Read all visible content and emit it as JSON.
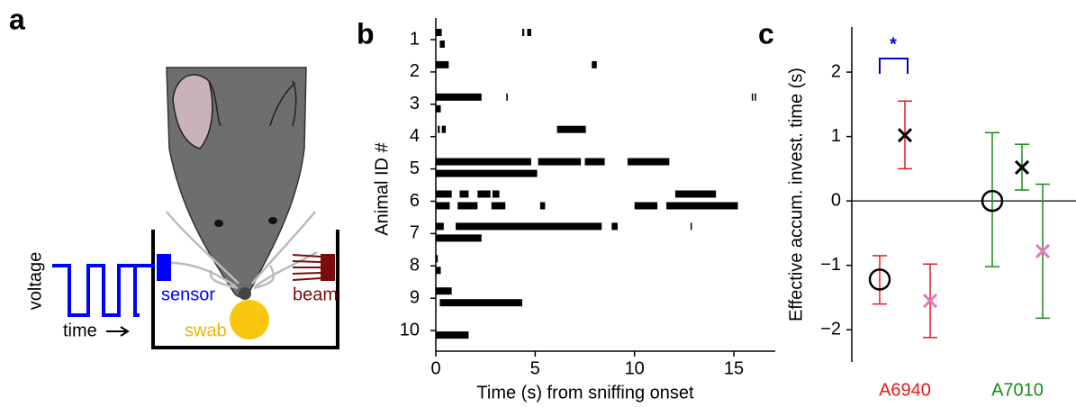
{
  "diagram": {
    "letter": "a",
    "voltage": "voltage",
    "time": "time",
    "sensor": "sensor",
    "beam": "beam",
    "swab": "swab"
  },
  "chart_data": [
    {
      "type": "raster",
      "letter": "b",
      "xlabel": "Time (s) from sniffing onset",
      "ylabel": "Animal ID #",
      "xlim": [
        0,
        17
      ],
      "xticks": [
        0,
        5,
        10,
        15
      ],
      "categories": [
        "1",
        "2",
        "3",
        "4",
        "5",
        "6",
        "7",
        "8",
        "9",
        "10"
      ],
      "color": "#000000",
      "animals": [
        {
          "trials": [
            [
              [
                0,
                0.3
              ],
              [
                4.35,
                4.45
              ],
              [
                4.6,
                4.8
              ]
            ],
            [
              [
                0.2,
                0.45
              ]
            ]
          ]
        },
        {
          "trials": [
            [
              [
                0,
                0.65
              ],
              [
                7.85,
                8.1
              ]
            ],
            []
          ]
        },
        {
          "trials": [
            [
              [
                0,
                2.3
              ],
              [
                3.55,
                3.62
              ],
              [
                15.9,
                15.95
              ],
              [
                16.05,
                16.1
              ]
            ],
            [
              [
                0,
                0.25
              ]
            ]
          ]
        },
        {
          "trials": [
            [
              [
                0.1,
                0.2
              ],
              [
                0.3,
                0.5
              ],
              [
                6.1,
                7.55
              ]
            ],
            []
          ]
        },
        {
          "trials": [
            [
              [
                0,
                4.8
              ],
              [
                5.15,
                7.3
              ],
              [
                7.5,
                8.5
              ],
              [
                9.65,
                11.75
              ]
            ],
            [
              [
                0,
                5.1
              ]
            ]
          ]
        },
        {
          "trials": [
            [
              [
                0,
                0.8
              ],
              [
                1.2,
                1.65
              ],
              [
                2.1,
                2.75
              ],
              [
                2.85,
                3.2
              ],
              [
                12.05,
                14.1
              ]
            ],
            [
              [
                0,
                0.7
              ],
              [
                1.1,
                2.1
              ],
              [
                2.8,
                3.5
              ],
              [
                5.25,
                5.5
              ],
              [
                10,
                11.15
              ],
              [
                11.6,
                15.2
              ]
            ]
          ]
        },
        {
          "trials": [
            [
              [
                0,
                0.4
              ],
              [
                1,
                8.35
              ],
              [
                8.85,
                9.15
              ],
              [
                12.82,
                12.88
              ]
            ],
            [
              [
                0,
                2.3
              ]
            ]
          ]
        },
        {
          "trials": [
            [
              [
                0,
                0.1
              ]
            ],
            [
              [
                0,
                0.25
              ]
            ]
          ]
        },
        {
          "trials": [
            [
              [
                0,
                0.8
              ]
            ],
            [
              [
                0.2,
                4.35
              ]
            ]
          ]
        },
        {
          "trials": [
            [],
            [
              [
                0,
                1.65
              ]
            ]
          ]
        }
      ]
    },
    {
      "type": "errorbar",
      "letter": "c",
      "ylabel": "Effective accum. invest. time (s)",
      "categories": [
        "A6940",
        "A7010"
      ],
      "category_colors": [
        "#e41a1c",
        "#1a8a1a"
      ],
      "ylim": [
        -2.5,
        2.7
      ],
      "yticks": [
        {
          "value": -2,
          "label": "−2"
        },
        {
          "value": -1,
          "label": "−1"
        },
        0,
        1,
        2
      ],
      "series": [
        {
          "marker": "circle",
          "color": "#000000",
          "values": [
            -1.22,
            0
          ],
          "lower": [
            -1.6,
            -1.02
          ],
          "upper": [
            -0.85,
            1.06
          ]
        },
        {
          "marker": "cross",
          "color": "#000000",
          "values": [
            1.02,
            0.52
          ],
          "lower": [
            0.5,
            0.17
          ],
          "upper": [
            1.55,
            0.88
          ]
        },
        {
          "marker": "cross",
          "color": "#e377c2",
          "values": [
            -1.55,
            -0.78
          ],
          "lower": [
            -2.12,
            -1.82
          ],
          "upper": [
            -0.98,
            0.26
          ]
        }
      ],
      "annotation": "*",
      "annotation_color": "#0000cc"
    }
  ]
}
